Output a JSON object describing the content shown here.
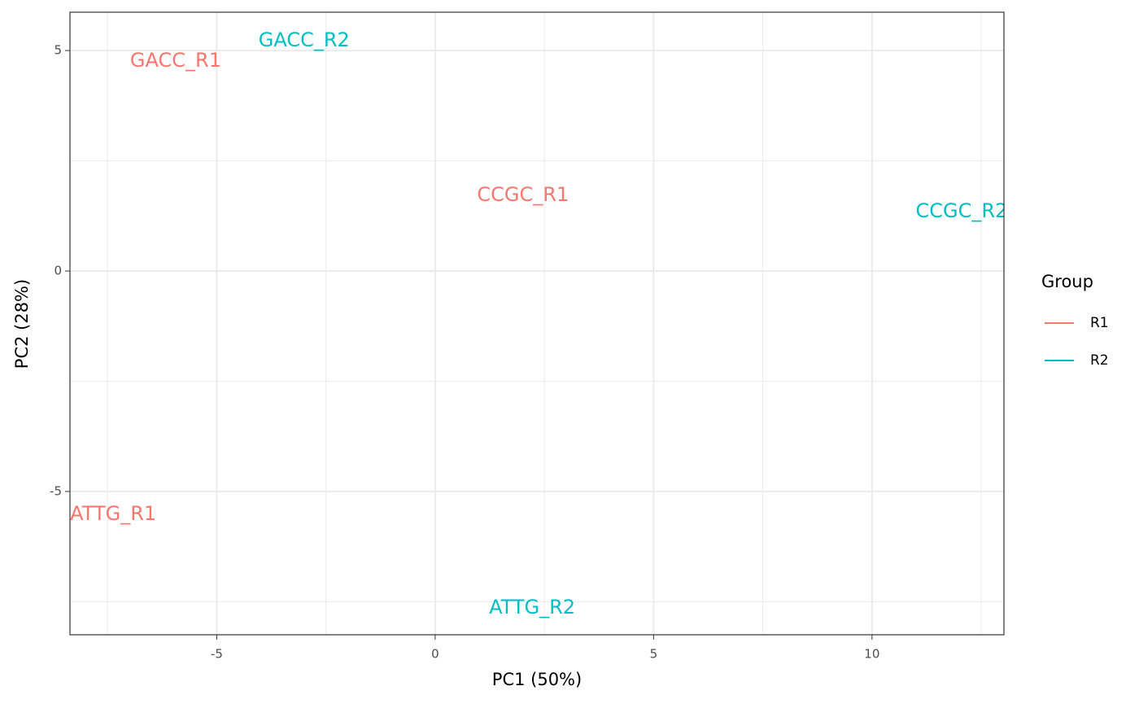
{
  "chart_data": {
    "type": "scatter",
    "xlabel": "PC1 (50%)",
    "ylabel": "PC2 (28%)",
    "legend_title": "Group",
    "legend": "right",
    "grid": true,
    "xlim": [
      -8.36,
      13.02
    ],
    "ylim": [
      -8.25,
      5.87
    ],
    "xticks": [
      -5,
      0,
      5,
      10
    ],
    "yticks": [
      -5,
      0,
      5
    ],
    "xminor": [
      -7.5,
      -2.5,
      2.5,
      7.5,
      12.5
    ],
    "yminor": [
      -7.5,
      -2.5,
      2.5
    ],
    "series": [
      {
        "name": "R1",
        "color": "#F8766D",
        "labels": [
          "GACC_R1",
          "CCGC_R1",
          "ATTG_R1"
        ],
        "x": [
          -5.94,
          2.01,
          -7.37
        ],
        "values": [
          4.76,
          1.72,
          -5.52
        ]
      },
      {
        "name": "R2",
        "color": "#00BFC4",
        "labels": [
          "GACC_R2",
          "CCGC_R2",
          "ATTG_R2"
        ],
        "x": [
          -3.0,
          12.05,
          2.22
        ],
        "values": [
          5.22,
          1.35,
          -7.64
        ]
      }
    ]
  }
}
